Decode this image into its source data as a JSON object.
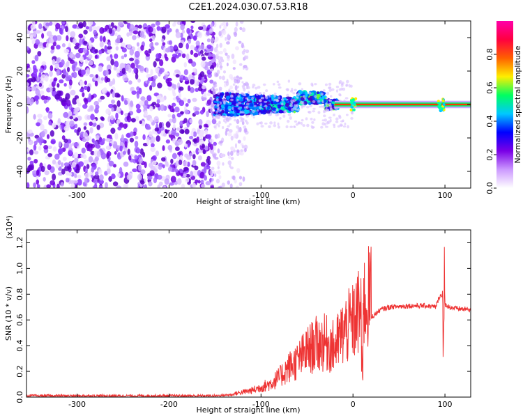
{
  "title": "C2E1.2024.030.07.53.R18",
  "chart_data": [
    {
      "type": "heatmap",
      "xlabel": "Height of straight line (km)",
      "ylabel": "Frequency (Hz)",
      "xlim": [
        -355,
        128
      ],
      "ylim": [
        -50,
        50
      ],
      "xticks": [
        -300,
        -200,
        -100,
        0,
        100
      ],
      "yticks": [
        -40,
        -20,
        0,
        20,
        40
      ],
      "colorbar": {
        "label": "Normalized spectral amplitude",
        "range": [
          0,
          1
        ],
        "ticks": [
          "0.0",
          "0.2",
          "0.4",
          "0.6",
          "0.8"
        ],
        "colors": [
          "#ffffff",
          "#cc99ff",
          "#7a00e6",
          "#0000ff",
          "#00c8ff",
          "#00ff60",
          "#ffee00",
          "#ff6000",
          "#ff0040",
          "#ff00aa"
        ]
      },
      "features": {
        "noise_region_x": [
          -355,
          -150
        ],
        "signal_band_x": [
          -150,
          128
        ],
        "carrier_frequency": 0
      }
    },
    {
      "type": "line",
      "xlabel": "Height of straight line (km)",
      "ylabel": "SNR (10 * v/v)",
      "yscale_label": "(x10⁴)",
      "xlim": [
        -355,
        128
      ],
      "ylim": [
        0,
        1.3
      ],
      "xticks": [
        -300,
        -200,
        -100,
        0,
        100
      ],
      "yticks": [
        "0.0",
        "0.2",
        "0.4",
        "0.6",
        "0.8",
        "1.0",
        "1.2"
      ],
      "color": "#ee3333",
      "series": [
        {
          "x": [
            -355,
            -300,
            -250,
            -200,
            -150,
            -130,
            -110,
            -100,
            -90,
            -80,
            -70,
            -60,
            -50,
            -40,
            -30,
            -20,
            -10,
            0,
            5,
            10,
            20,
            30,
            40,
            60,
            80,
            90,
            95,
            100,
            105,
            110,
            128
          ],
          "y": [
            0.01,
            0.01,
            0.01,
            0.01,
            0.01,
            0.02,
            0.04,
            0.06,
            0.08,
            0.12,
            0.18,
            0.22,
            0.28,
            0.32,
            0.33,
            0.3,
            0.4,
            0.45,
            0.5,
            0.55,
            0.62,
            0.68,
            0.7,
            0.71,
            0.71,
            0.7,
            0.8,
            0.72,
            0.7,
            0.69,
            0.68
          ]
        }
      ]
    }
  ]
}
